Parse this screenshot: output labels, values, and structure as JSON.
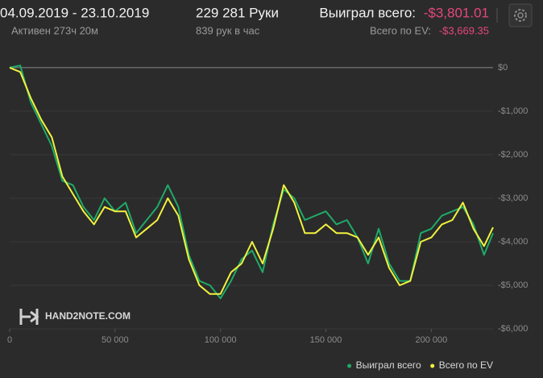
{
  "header": {
    "date_range": "04.09.2019 - 23.10.2019",
    "active": "Активен 273ч 20м",
    "hands": "229 281 Руки",
    "hands_per_hour": "839 рук в час",
    "won_label": "Выиграл всего:",
    "won_value": "-$3,801.01",
    "ev_label": "Всего по EV:",
    "ev_value": "-$3,669.35"
  },
  "chart_data": {
    "type": "line",
    "watermark": "HAND2NOTE.COM",
    "x": [
      0,
      5000,
      10000,
      15000,
      20000,
      25000,
      30000,
      35000,
      40000,
      45000,
      50000,
      55000,
      60000,
      65000,
      70000,
      75000,
      80000,
      85000,
      90000,
      95000,
      100000,
      105000,
      110000,
      115000,
      120000,
      125000,
      130000,
      135000,
      140000,
      145000,
      150000,
      155000,
      160000,
      165000,
      170000,
      175000,
      180000,
      185000,
      190000,
      195000,
      200000,
      205000,
      210000,
      215000,
      220000,
      225000,
      229281
    ],
    "series": [
      {
        "name": "Выиграл всего",
        "color": "#1faa68",
        "values": [
          0,
          50,
          -800,
          -1300,
          -1800,
          -2600,
          -2700,
          -3200,
          -3500,
          -3000,
          -3300,
          -3100,
          -3800,
          -3500,
          -3200,
          -2700,
          -3200,
          -4300,
          -4900,
          -5000,
          -5300,
          -4900,
          -4400,
          -4200,
          -4700,
          -3600,
          -2800,
          -3000,
          -3500,
          -3400,
          -3300,
          -3600,
          -3500,
          -3900,
          -4500,
          -3700,
          -4500,
          -4900,
          -4900,
          -3800,
          -3700,
          -3400,
          -3300,
          -3200,
          -3600,
          -4300,
          -3801.01
        ]
      },
      {
        "name": "Всего по EV",
        "color": "#f2f23e",
        "values": [
          0,
          -100,
          -700,
          -1200,
          -1600,
          -2500,
          -2900,
          -3300,
          -3600,
          -3200,
          -3300,
          -3300,
          -3900,
          -3700,
          -3500,
          -3000,
          -3400,
          -4400,
          -5000,
          -5200,
          -5200,
          -4700,
          -4500,
          -4000,
          -4500,
          -3700,
          -2700,
          -3100,
          -3800,
          -3800,
          -3600,
          -3800,
          -3800,
          -3900,
          -4300,
          -3900,
          -4600,
          -5000,
          -4900,
          -4000,
          -3900,
          -3600,
          -3500,
          -3100,
          -3700,
          -4100,
          -3669.35
        ]
      }
    ],
    "xlim": [
      0,
      229281
    ],
    "xticks": [
      0,
      {
        "value": 50000,
        "label": "50 000"
      },
      {
        "value": 100000,
        "label": "100 000"
      },
      {
        "value": 150000,
        "label": "150 000"
      },
      {
        "value": 200000,
        "label": "200 000"
      }
    ],
    "ylim": [
      -6000,
      350
    ],
    "yticks": [
      {
        "value": 0,
        "label": "$0"
      },
      {
        "value": -1000,
        "label": "-$1,000"
      },
      {
        "value": -2000,
        "label": "-$2,000"
      },
      {
        "value": -3000,
        "label": "-$3,000"
      },
      {
        "value": -4000,
        "label": "-$4,000"
      },
      {
        "value": -5000,
        "label": "-$5,000"
      },
      {
        "value": -6000,
        "label": "-$6,000"
      }
    ],
    "grid": true,
    "legend": "lower right"
  }
}
